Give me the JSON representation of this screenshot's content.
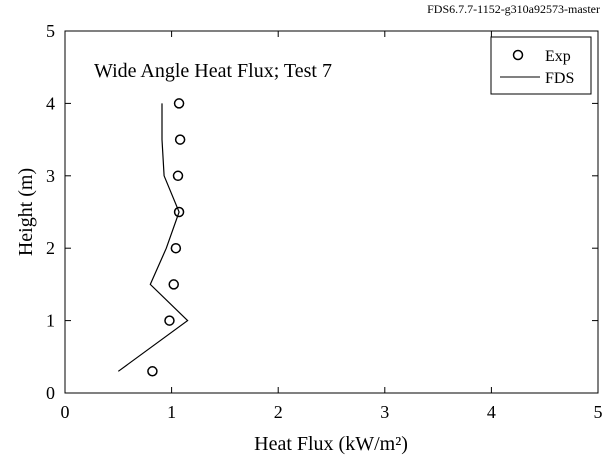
{
  "version_label": "FDS6.7.7-1152-g310a92573-master",
  "chart_data": {
    "type": "scatter",
    "title": "Wide Angle Heat Flux; Test 7",
    "xlabel": "Heat Flux (kW/m²)",
    "ylabel": "Height (m)",
    "xlim": [
      0,
      5
    ],
    "ylim": [
      0,
      5
    ],
    "xticks": [
      "0",
      "1",
      "2",
      "3",
      "4",
      "5"
    ],
    "yticks": [
      "0",
      "1",
      "2",
      "3",
      "4",
      "5"
    ],
    "grid": false,
    "legend_position": "top-right",
    "series": [
      {
        "name": "Exp",
        "style": "markers",
        "marker": "circle",
        "points": [
          {
            "x": 0.82,
            "y": 0.3
          },
          {
            "x": 0.98,
            "y": 1.0
          },
          {
            "x": 1.02,
            "y": 1.5
          },
          {
            "x": 1.04,
            "y": 2.0
          },
          {
            "x": 1.07,
            "y": 2.5
          },
          {
            "x": 1.06,
            "y": 3.0
          },
          {
            "x": 1.08,
            "y": 3.5
          },
          {
            "x": 1.07,
            "y": 4.0
          }
        ]
      },
      {
        "name": "FDS",
        "style": "line",
        "color": "#000000",
        "points": [
          {
            "x": 0.5,
            "y": 0.3
          },
          {
            "x": 1.15,
            "y": 1.0
          },
          {
            "x": 0.8,
            "y": 1.5
          },
          {
            "x": 0.95,
            "y": 2.0
          },
          {
            "x": 1.07,
            "y": 2.5
          },
          {
            "x": 0.93,
            "y": 3.0
          },
          {
            "x": 0.91,
            "y": 3.5
          },
          {
            "x": 0.91,
            "y": 4.0
          }
        ]
      }
    ]
  }
}
